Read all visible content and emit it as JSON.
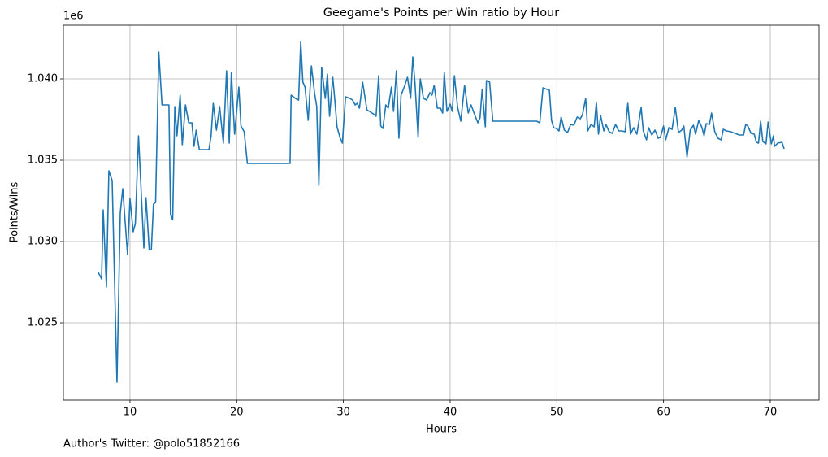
{
  "chart_data": {
    "type": "line",
    "title": "Geegame's Points per Win ratio by Hour",
    "xlabel": "Hours",
    "ylabel": "Points/Wins",
    "offset_label": "1e6",
    "footer": "Author's Twitter: @polo51852166",
    "color": "#1f77b4",
    "grid": true,
    "xlim": [
      3.76,
      74.57
    ],
    "ylim": [
      1.02025,
      1.0433
    ],
    "xticks": [
      10,
      20,
      30,
      40,
      50,
      60,
      70
    ],
    "yticks": [
      1.025,
      {
        "value": 1.03,
        "label": "1.030"
      },
      1.035,
      {
        "value": 1.04,
        "label": "1.040"
      }
    ],
    "x": [
      7.03,
      7.34,
      7.49,
      7.79,
      8.02,
      8.33,
      8.78,
      9.09,
      9.32,
      9.77,
      10.0,
      10.3,
      10.5,
      10.8,
      11.3,
      11.5,
      11.8,
      12.0,
      12.2,
      12.4,
      12.7,
      13.0,
      13.5,
      13.65,
      13.8,
      14.0,
      14.2,
      14.4,
      14.7,
      14.9,
      15.2,
      15.5,
      15.8,
      16.0,
      16.2,
      16.5,
      16.8,
      17.4,
      17.6,
      17.8,
      18.1,
      18.4,
      18.75,
      19.05,
      19.3,
      19.5,
      19.8,
      20.2,
      20.4,
      20.7,
      21.0,
      22.9,
      25.0,
      25.1,
      25.5,
      25.8,
      26.0,
      26.2,
      26.4,
      26.7,
      27.0,
      27.3,
      27.5,
      27.7,
      27.96,
      28.3,
      28.5,
      28.7,
      29.0,
      29.2,
      29.4,
      29.7,
      29.9,
      30.2,
      30.6,
      30.85,
      31.1,
      31.3,
      31.5,
      31.8,
      32.2,
      32.8,
      33.06,
      33.3,
      33.5,
      33.7,
      33.97,
      34.2,
      34.5,
      34.7,
      34.96,
      35.2,
      35.4,
      35.7,
      36.0,
      36.3,
      36.5,
      36.7,
      37.0,
      37.2,
      37.5,
      37.8,
      38.1,
      38.3,
      38.5,
      38.8,
      39.1,
      39.3,
      39.45,
      39.7,
      40.0,
      40.2,
      40.4,
      40.7,
      41.0,
      41.35,
      41.7,
      41.96,
      42.3,
      42.6,
      42.8,
      43.0,
      43.3,
      43.4,
      43.7,
      44.0,
      46.5,
      48.1,
      48.4,
      48.7,
      49.3,
      49.5,
      49.7,
      49.96,
      50.2,
      50.4,
      50.7,
      51.0,
      51.3,
      51.6,
      51.9,
      52.2,
      52.4,
      52.7,
      52.9,
      53.2,
      53.5,
      53.7,
      53.9,
      54.1,
      54.4,
      54.6,
      54.9,
      55.2,
      55.5,
      55.8,
      56.1,
      56.4,
      56.65,
      56.9,
      57.2,
      57.5,
      57.9,
      58.1,
      58.4,
      58.6,
      58.9,
      59.2,
      59.5,
      59.7,
      60.0,
      60.2,
      60.5,
      60.8,
      61.1,
      61.4,
      61.7,
      61.9,
      62.2,
      62.5,
      62.8,
      63.0,
      63.3,
      63.6,
      63.8,
      64.0,
      64.3,
      64.5,
      64.8,
      65.1,
      65.4,
      65.6,
      65.9,
      66.3,
      66.7,
      67.1,
      67.5,
      67.7,
      67.9,
      68.2,
      68.5,
      68.7,
      68.9,
      69.1,
      69.3,
      69.6,
      69.8,
      70.1,
      70.3,
      70.4,
      70.7,
      71.1,
      71.3
    ],
    "values": [
      1.0281,
      1.0277,
      1.03195,
      1.0272,
      1.03435,
      1.03375,
      1.02135,
      1.03175,
      1.03325,
      1.0292,
      1.03265,
      1.0306,
      1.0311,
      1.0365,
      1.0296,
      1.0327,
      1.0295,
      1.0295,
      1.0323,
      1.0324,
      1.04165,
      1.0384,
      1.0384,
      1.0384,
      1.03165,
      1.03135,
      1.0383,
      1.0365,
      1.039,
      1.03595,
      1.0384,
      1.0373,
      1.0373,
      1.03585,
      1.03685,
      1.03565,
      1.03565,
      1.03565,
      1.0365,
      1.0385,
      1.03685,
      1.0383,
      1.03605,
      1.0405,
      1.03605,
      1.0404,
      1.0366,
      1.0395,
      1.0371,
      1.03675,
      1.0348,
      1.0348,
      1.0348,
      1.039,
      1.0388,
      1.0387,
      1.0423,
      1.0398,
      1.0395,
      1.03745,
      1.0408,
      1.0391,
      1.0383,
      1.03345,
      1.0407,
      1.0388,
      1.0403,
      1.0377,
      1.0401,
      1.03865,
      1.03705,
      1.03635,
      1.03605,
      1.0389,
      1.0388,
      1.0387,
      1.0384,
      1.0385,
      1.0382,
      1.0398,
      1.0381,
      1.03785,
      1.0377,
      1.0402,
      1.0371,
      1.03695,
      1.0384,
      1.0382,
      1.0395,
      1.038,
      1.0405,
      1.03635,
      1.039,
      1.0395,
      1.0401,
      1.0388,
      1.04135,
      1.0398,
      1.0364,
      1.04,
      1.0388,
      1.0387,
      1.03915,
      1.039,
      1.0396,
      1.0382,
      1.0382,
      1.0379,
      1.0404,
      1.038,
      1.03845,
      1.038,
      1.0402,
      1.03825,
      1.0374,
      1.0396,
      1.0379,
      1.0384,
      1.0378,
      1.0373,
      1.0376,
      1.03935,
      1.03705,
      1.0399,
      1.0398,
      1.0374,
      1.0374,
      1.0374,
      1.0373,
      1.03945,
      1.0393,
      1.03745,
      1.037,
      1.03695,
      1.0368,
      1.03765,
      1.03685,
      1.0367,
      1.0372,
      1.03715,
      1.03765,
      1.03755,
      1.0378,
      1.0388,
      1.0368,
      1.0372,
      1.03705,
      1.03855,
      1.0366,
      1.03775,
      1.0368,
      1.0372,
      1.03675,
      1.03665,
      1.0372,
      1.0368,
      1.0368,
      1.03675,
      1.0385,
      1.0366,
      1.037,
      1.0366,
      1.03825,
      1.0368,
      1.03625,
      1.037,
      1.03655,
      1.03685,
      1.03635,
      1.0364,
      1.0371,
      1.03625,
      1.037,
      1.0369,
      1.03825,
      1.0367,
      1.03685,
      1.0371,
      1.0352,
      1.03685,
      1.03715,
      1.0366,
      1.03745,
      1.037,
      1.0365,
      1.03725,
      1.0372,
      1.0379,
      1.03675,
      1.03635,
      1.03625,
      1.0369,
      1.0368,
      1.03675,
      1.03665,
      1.03655,
      1.03655,
      1.0372,
      1.0371,
      1.03665,
      1.0366,
      1.0361,
      1.03605,
      1.0374,
      1.03615,
      1.036,
      1.03735,
      1.036,
      1.0365,
      1.03585,
      1.03605,
      1.0361,
      1.0357
    ]
  }
}
